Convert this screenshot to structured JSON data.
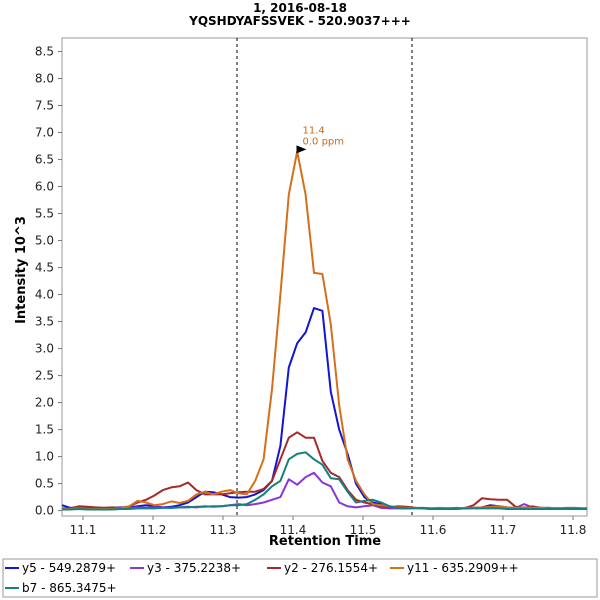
{
  "chart_data": {
    "type": "line",
    "title": "1, 2016-08-18",
    "subtitle": "YQSHDYAFSSVEK - 520.9037+++",
    "xlabel": "Retention Time",
    "ylabel": "Intensity 10^3",
    "xlim": [
      11.07,
      11.82
    ],
    "ylim": [
      -0.1,
      8.75
    ],
    "x_ticks": [
      "11.1",
      "11.2",
      "11.3",
      "11.4",
      "11.5",
      "11.6",
      "11.7",
      "11.8"
    ],
    "y_ticks": [
      "0.0",
      "0.5",
      "1.0",
      "1.5",
      "2.0",
      "2.5",
      "3.0",
      "3.5",
      "4.0",
      "4.5",
      "5.0",
      "5.5",
      "6.0",
      "6.5",
      "7.0",
      "7.5",
      "8.0",
      "8.5"
    ],
    "boundaries": [
      11.32,
      11.57
    ],
    "grid": false,
    "legend_position": "bottom",
    "annotation": {
      "x": 11.425,
      "y": 6.65,
      "line1": "11.4",
      "line2": "0.0 ppm",
      "color": "#c8691a"
    },
    "x": [
      11.07,
      11.082,
      11.094,
      11.106,
      11.118,
      11.13,
      11.142,
      11.154,
      11.166,
      11.178,
      11.19,
      11.202,
      11.214,
      11.226,
      11.238,
      11.25,
      11.262,
      11.274,
      11.286,
      11.298,
      11.31,
      11.322,
      11.334,
      11.346,
      11.358,
      11.37,
      11.382,
      11.394,
      11.406,
      11.418,
      11.43,
      11.442,
      11.454,
      11.466,
      11.478,
      11.49,
      11.502,
      11.514,
      11.526,
      11.538,
      11.55,
      11.562,
      11.574,
      11.586,
      11.598,
      11.61,
      11.622,
      11.634,
      11.646,
      11.658,
      11.67,
      11.682,
      11.694,
      11.706,
      11.718,
      11.73,
      11.742,
      11.754,
      11.766,
      11.778,
      11.79,
      11.802,
      11.814,
      11.82
    ],
    "series": [
      {
        "name": "y5 - 549.2879+",
        "color": "#1414d4",
        "values": [
          0.1,
          0.05,
          0.06,
          0.05,
          0.05,
          0.05,
          0.05,
          0.06,
          0.06,
          0.08,
          0.1,
          0.08,
          0.06,
          0.07,
          0.1,
          0.15,
          0.25,
          0.35,
          0.34,
          0.3,
          0.25,
          0.24,
          0.25,
          0.3,
          0.38,
          0.55,
          1.2,
          2.65,
          3.1,
          3.3,
          3.75,
          3.7,
          2.2,
          1.5,
          1.05,
          0.5,
          0.25,
          0.15,
          0.12,
          0.08,
          0.05,
          0.04,
          0.05,
          0.04,
          0.03,
          0.04,
          0.04,
          0.05,
          0.04,
          0.05,
          0.06,
          0.1,
          0.08,
          0.06,
          0.05,
          0.06,
          0.05,
          0.05,
          0.04,
          0.04,
          0.04,
          0.04,
          0.04,
          0.04
        ]
      },
      {
        "name": "y3 - 375.2238+",
        "color": "#8b35d6",
        "values": [
          0.04,
          0.04,
          0.05,
          0.04,
          0.04,
          0.05,
          0.04,
          0.05,
          0.05,
          0.06,
          0.05,
          0.06,
          0.06,
          0.05,
          0.06,
          0.07,
          0.06,
          0.08,
          0.07,
          0.08,
          0.1,
          0.12,
          0.1,
          0.12,
          0.15,
          0.2,
          0.25,
          0.58,
          0.48,
          0.62,
          0.7,
          0.52,
          0.45,
          0.15,
          0.08,
          0.06,
          0.08,
          0.1,
          0.05,
          0.04,
          0.04,
          0.04,
          0.05,
          0.04,
          0.04,
          0.05,
          0.04,
          0.04,
          0.04,
          0.05,
          0.05,
          0.05,
          0.06,
          0.05,
          0.05,
          0.12,
          0.06,
          0.05,
          0.05,
          0.04,
          0.04,
          0.04,
          0.04,
          0.04
        ]
      },
      {
        "name": "y2 - 276.1554+",
        "color": "#a52a2a",
        "values": [
          0.03,
          0.04,
          0.08,
          0.07,
          0.06,
          0.05,
          0.06,
          0.05,
          0.08,
          0.15,
          0.2,
          0.28,
          0.38,
          0.43,
          0.45,
          0.52,
          0.38,
          0.3,
          0.3,
          0.3,
          0.32,
          0.34,
          0.35,
          0.35,
          0.4,
          0.55,
          0.95,
          1.35,
          1.45,
          1.35,
          1.35,
          0.92,
          0.7,
          0.62,
          0.38,
          0.2,
          0.15,
          0.12,
          0.08,
          0.06,
          0.08,
          0.07,
          0.05,
          0.05,
          0.04,
          0.04,
          0.04,
          0.04,
          0.05,
          0.1,
          0.23,
          0.21,
          0.2,
          0.2,
          0.07,
          0.05,
          0.08,
          0.05,
          0.05,
          0.04,
          0.05,
          0.05,
          0.04,
          0.04
        ]
      },
      {
        "name": "y11 - 635.2909++",
        "color": "#d5701a",
        "values": [
          0.03,
          0.03,
          0.04,
          0.03,
          0.03,
          0.03,
          0.03,
          0.04,
          0.08,
          0.18,
          0.15,
          0.1,
          0.12,
          0.17,
          0.14,
          0.18,
          0.3,
          0.35,
          0.3,
          0.35,
          0.38,
          0.32,
          0.3,
          0.55,
          0.95,
          2.25,
          4.0,
          5.85,
          6.65,
          5.85,
          4.4,
          4.38,
          3.45,
          1.95,
          0.95,
          0.55,
          0.3,
          0.12,
          0.1,
          0.08,
          0.06,
          0.05,
          0.05,
          0.04,
          0.04,
          0.04,
          0.04,
          0.04,
          0.05,
          0.05,
          0.06,
          0.07,
          0.08,
          0.06,
          0.05,
          0.06,
          0.05,
          0.05,
          0.04,
          0.05,
          0.04,
          0.04,
          0.04,
          0.04
        ]
      },
      {
        "name": "b7 - 865.3475+",
        "color": "#158080",
        "values": [
          0.02,
          0.02,
          0.03,
          0.02,
          0.02,
          0.02,
          0.02,
          0.03,
          0.03,
          0.04,
          0.04,
          0.04,
          0.05,
          0.05,
          0.06,
          0.06,
          0.07,
          0.07,
          0.08,
          0.08,
          0.1,
          0.1,
          0.12,
          0.2,
          0.3,
          0.45,
          0.55,
          0.95,
          1.05,
          1.08,
          0.95,
          0.85,
          0.6,
          0.58,
          0.35,
          0.15,
          0.18,
          0.2,
          0.15,
          0.08,
          0.05,
          0.04,
          0.04,
          0.04,
          0.03,
          0.03,
          0.03,
          0.03,
          0.04,
          0.04,
          0.04,
          0.04,
          0.04,
          0.03,
          0.03,
          0.03,
          0.03,
          0.03,
          0.03,
          0.03,
          0.03,
          0.03,
          0.03,
          0.03
        ]
      }
    ]
  }
}
